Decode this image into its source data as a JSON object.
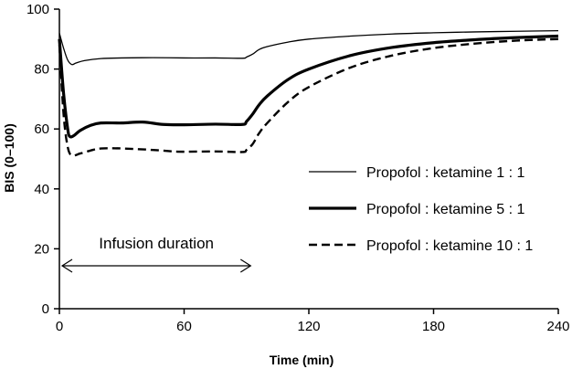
{
  "chart_data": {
    "type": "line",
    "xlabel": "Time (min)",
    "ylabel": "BIS (0–100)",
    "xlim": [
      0,
      240
    ],
    "ylim": [
      0,
      100
    ],
    "xticks": [
      0,
      60,
      120,
      180,
      240
    ],
    "yticks": [
      0,
      20,
      40,
      60,
      80,
      100
    ],
    "grid": false,
    "legend_position": "right",
    "annotation": {
      "text": "Infusion duration",
      "x_start": 0,
      "x_end": 92
    },
    "series": [
      {
        "name": "Propofol : ketamine 1 : 1",
        "style": "thin-solid",
        "points": [
          [
            0,
            92
          ],
          [
            2,
            87
          ],
          [
            4,
            83
          ],
          [
            6,
            81.5
          ],
          [
            8,
            82
          ],
          [
            12,
            82.8
          ],
          [
            20,
            83.5
          ],
          [
            30,
            83.7
          ],
          [
            45,
            83.8
          ],
          [
            60,
            83.7
          ],
          [
            75,
            83.7
          ],
          [
            88,
            83.6
          ],
          [
            90,
            84
          ],
          [
            93,
            85
          ],
          [
            96,
            86.5
          ],
          [
            100,
            87.5
          ],
          [
            110,
            89
          ],
          [
            120,
            90
          ],
          [
            140,
            91
          ],
          [
            160,
            91.7
          ],
          [
            180,
            92.1
          ],
          [
            200,
            92.4
          ],
          [
            220,
            92.6
          ],
          [
            240,
            92.8
          ]
        ]
      },
      {
        "name": "Propofol : ketamine 5 : 1",
        "style": "thick-solid",
        "points": [
          [
            0,
            90
          ],
          [
            2,
            72
          ],
          [
            4,
            60
          ],
          [
            5,
            57.5
          ],
          [
            7,
            57.8
          ],
          [
            10,
            59.5
          ],
          [
            15,
            61.2
          ],
          [
            20,
            62
          ],
          [
            30,
            62
          ],
          [
            40,
            62.3
          ],
          [
            50,
            61.5
          ],
          [
            60,
            61.4
          ],
          [
            75,
            61.6
          ],
          [
            88,
            61.5
          ],
          [
            90,
            62.5
          ],
          [
            93,
            65
          ],
          [
            96,
            68
          ],
          [
            100,
            71
          ],
          [
            110,
            76.5
          ],
          [
            120,
            80
          ],
          [
            140,
            84.5
          ],
          [
            160,
            87.2
          ],
          [
            180,
            88.8
          ],
          [
            200,
            89.8
          ],
          [
            220,
            90.5
          ],
          [
            240,
            91
          ]
        ]
      },
      {
        "name": "Propofol : ketamine 10 : 1",
        "style": "dashed",
        "points": [
          [
            0,
            88
          ],
          [
            2,
            65
          ],
          [
            4,
            54
          ],
          [
            6,
            51.2
          ],
          [
            10,
            51.8
          ],
          [
            15,
            52.8
          ],
          [
            20,
            53.5
          ],
          [
            30,
            53.5
          ],
          [
            45,
            53
          ],
          [
            55,
            52.5
          ],
          [
            60,
            52.4
          ],
          [
            75,
            52.5
          ],
          [
            88,
            52.3
          ],
          [
            90,
            53
          ],
          [
            93,
            55
          ],
          [
            96,
            58.5
          ],
          [
            100,
            62
          ],
          [
            110,
            69
          ],
          [
            120,
            74
          ],
          [
            140,
            80.5
          ],
          [
            160,
            84.5
          ],
          [
            180,
            87
          ],
          [
            200,
            88.5
          ],
          [
            220,
            89.5
          ],
          [
            240,
            90
          ]
        ]
      }
    ]
  }
}
